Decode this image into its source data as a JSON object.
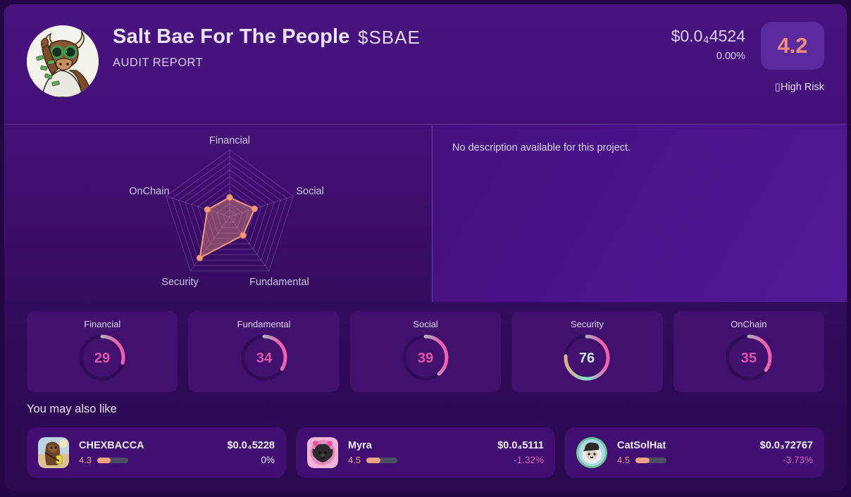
{
  "theme": {
    "accent_salmon": "#f39a7b",
    "accent_teal": "#7fe8ca",
    "accent_pink": "#f160ae",
    "gauge_track": "#320e58",
    "gauge_gradient": [
      "#f2a078",
      "#7fe8ca",
      "#f160ae"
    ],
    "radar_grid": "rgba(210,195,240,0.22)",
    "radar_fill": "rgba(243,153,122,0.40)",
    "radar_stroke": "#f49a7b",
    "radar_label_color": "#cfc3e6"
  },
  "header": {
    "title": "Salt Bae For The People",
    "subtitle": "AUDIT REPORT",
    "ticker": "$SBAE",
    "price": "$0.0₄4524",
    "change": "0.00%",
    "score": "4.2",
    "risk_label": "▯High Risk"
  },
  "description": "No description available for this project.",
  "radar": {
    "type": "radar",
    "labels": [
      "Financial",
      "Social",
      "Fundamental",
      "Security",
      "OnChain"
    ],
    "values": [
      29,
      39,
      34,
      76,
      35
    ],
    "max": 100
  },
  "metrics": [
    {
      "label": "Financial",
      "value": 29,
      "value_color": "#e254a8"
    },
    {
      "label": "Fundamental",
      "value": 34,
      "value_color": "#e254a8"
    },
    {
      "label": "Social",
      "value": 39,
      "value_color": "#e254a8"
    },
    {
      "label": "Security",
      "value": 76,
      "value_color": "#cde3f0"
    },
    {
      "label": "OnChain",
      "value": 35,
      "value_color": "#e254a8"
    }
  ],
  "suggestions": {
    "heading": "You may also like",
    "items": [
      {
        "name": "CHEXBACCA",
        "rating": "4.3",
        "rating_pct": 43,
        "price": "$0.0₄5228",
        "change": "0%",
        "change_color": "#eae2f6"
      },
      {
        "name": "Myra",
        "rating": "4.5",
        "rating_pct": 45,
        "price": "$0.0₄5111",
        "change": "-1.32%",
        "change_color": "#d95cb5"
      },
      {
        "name": "CatSolHat",
        "rating": "4.5",
        "rating_pct": 45,
        "price": "$0.0₃72767",
        "change": "-3.73%",
        "change_color": "#d95cb5"
      }
    ]
  }
}
